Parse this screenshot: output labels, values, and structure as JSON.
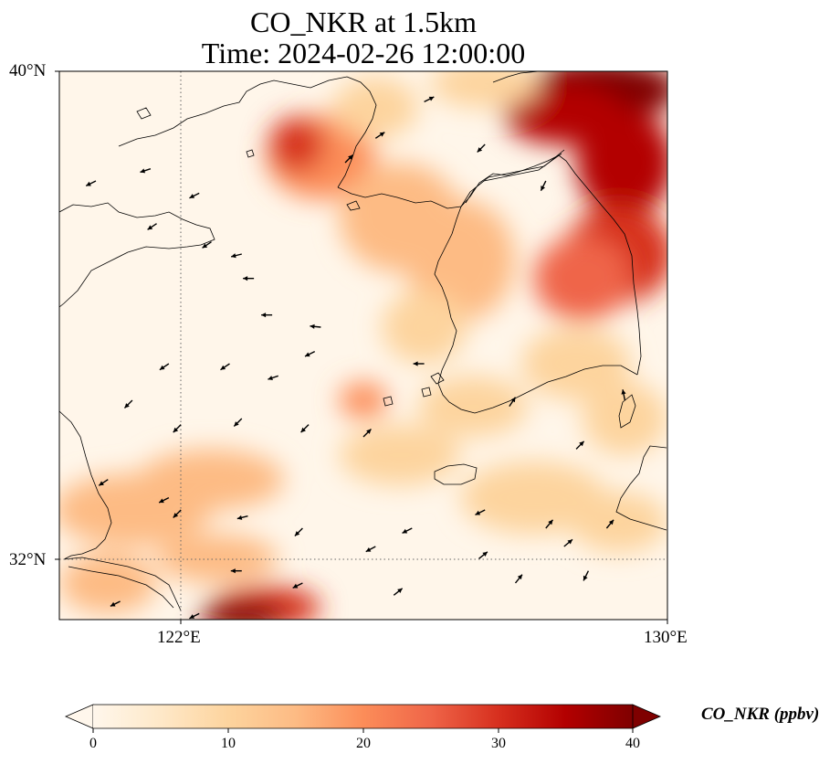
{
  "title": {
    "line1": "CO_NKR at 1.5km",
    "line2": "Time: 2024-02-26 12:00:00"
  },
  "axes": {
    "lat_labels": [
      "40°N",
      "32°N"
    ],
    "lon_labels": [
      "122°E",
      "130°E"
    ],
    "extent": {
      "lon_min": 120,
      "lon_max": 130,
      "lat_min": 31,
      "lat_max": 40
    },
    "gridlines": {
      "lons": [
        122
      ],
      "lats": [
        32
      ],
      "style": "dotted"
    }
  },
  "colorbar": {
    "label": "CO_NKR (ppbv)",
    "ticks": [
      "0",
      "10",
      "20",
      "30",
      "40"
    ],
    "min": 0,
    "max": 40,
    "extend": "both",
    "colormap": "OrRd",
    "colors": [
      "#fff7ec",
      "#fee8c8",
      "#fdd49e",
      "#fdbb84",
      "#fc8d59",
      "#ef6548",
      "#d7301f",
      "#b30000",
      "#7f0000"
    ]
  },
  "chart_data": {
    "type": "heatmap",
    "variable": "CO_NKR",
    "units": "ppbv",
    "level": "1.5km",
    "time": "2024-02-26 12:00:00",
    "field_hotspots": [
      {
        "region": "northeast corner, near 129.5E 39.8N",
        "value": 40
      },
      {
        "region": "east coast of Korea, 127.5-130E 36-39.5N",
        "value": 33
      },
      {
        "region": "Liaodong coast, 123.5E 38.7N",
        "value": 30
      },
      {
        "region": "Yangtze mouth area, 122.8E 31.2N",
        "value": 38
      },
      {
        "region": "west Korea interior, 125.5E 37.5N",
        "value": 18
      },
      {
        "region": "Yellow Sea, 121-123E 32.3-33.5N",
        "value": 15
      },
      {
        "region": "central Yellow Sea, 123-124E 35N",
        "value": 5
      }
    ],
    "wind_vectors": "southwesterly to westward arrows across domain"
  }
}
